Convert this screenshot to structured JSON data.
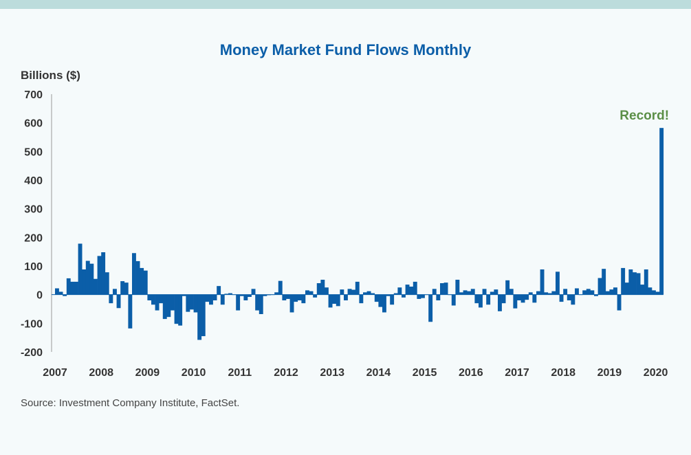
{
  "chart_data": {
    "type": "bar",
    "title": "Money Market Fund Flows Monthly",
    "ylabel": "Billions ($)",
    "xlabel": "",
    "ylim": [
      -200,
      700
    ],
    "y_ticks": [
      700,
      600,
      500,
      400,
      300,
      200,
      100,
      0,
      -100,
      -200
    ],
    "x_tick_labels": [
      "2007",
      "2008",
      "2009",
      "2010",
      "2011",
      "2012",
      "2013",
      "2014",
      "2015",
      "2016",
      "2017",
      "2018",
      "2019",
      "2020"
    ],
    "start_year": 2007,
    "bar_color": "#0b5ea8",
    "annotation": {
      "text": "Record!",
      "color": "#5b8f47"
    },
    "source": "Source: Investment Company Institute, FactSet.",
    "values": [
      22,
      10,
      -5,
      57,
      45,
      45,
      178,
      88,
      118,
      108,
      55,
      135,
      148,
      78,
      -30,
      20,
      -47,
      47,
      42,
      -118,
      145,
      117,
      93,
      84,
      -20,
      -35,
      -55,
      -30,
      -85,
      -78,
      -55,
      -102,
      -108,
      -5,
      -60,
      -52,
      -62,
      -158,
      -145,
      -25,
      -35,
      -20,
      30,
      -35,
      3,
      5,
      0,
      -55,
      -5,
      -20,
      -8,
      20,
      -55,
      -68,
      -5,
      -2,
      0,
      8,
      48,
      -20,
      -15,
      -62,
      -25,
      -20,
      -30,
      15,
      12,
      -10,
      40,
      52,
      25,
      -45,
      -32,
      -40,
      18,
      -20,
      20,
      17,
      45,
      -30,
      8,
      12,
      5,
      -25,
      -43,
      -62,
      -5,
      -35,
      5,
      25,
      -10,
      35,
      28,
      45,
      -15,
      -12,
      0,
      -95,
      20,
      -20,
      40,
      42,
      0,
      -38,
      52,
      8,
      15,
      12,
      20,
      -30,
      -45,
      20,
      -35,
      10,
      18,
      -58,
      -30,
      50,
      20,
      -48,
      -20,
      -28,
      -18,
      8,
      -28,
      12,
      88,
      8,
      5,
      12,
      80,
      -25,
      20,
      -20,
      -35,
      22,
      0,
      15,
      20,
      15,
      -5,
      58,
      90,
      12,
      18,
      25,
      -55,
      93,
      42,
      88,
      78,
      75,
      35,
      88,
      25,
      15,
      10,
      582
    ]
  }
}
